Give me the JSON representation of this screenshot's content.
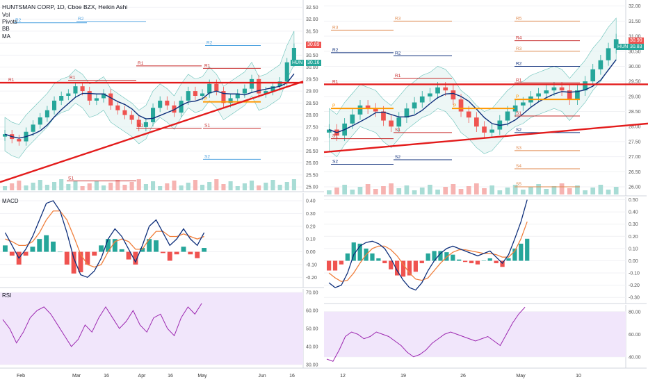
{
  "header": {
    "title": "HUNTSMAN CORP, 1D, Cboe BZX, Heikin Ashi",
    "indicators": [
      "Vol",
      "Pivots",
      "BB",
      "MA"
    ]
  },
  "colors": {
    "up": "#26a69a",
    "down": "#ef5350",
    "trendline": "#e31b1b",
    "ma": "#0d2e7a",
    "macd": "#0d2e7a",
    "signal": "#f07f3c",
    "rsi": "#9c27b0",
    "rsi_band": "#f1e6fb",
    "pivot_p": "#ff9800",
    "pivot_r": "#c62828",
    "pivot_s": "#c62828"
  },
  "symbol_tag": "HUN",
  "chart_data": [
    {
      "name": "left-price",
      "type": "candlestick",
      "xlabels": [
        "Feb",
        "Mar",
        "16",
        "Apr",
        "16",
        "May",
        "Jun",
        "16"
      ],
      "yticks": [
        25.0,
        25.5,
        26.0,
        26.5,
        27.0,
        27.5,
        28.0,
        28.5,
        29.0,
        29.5,
        30.0,
        30.5,
        31.0,
        31.5,
        32.0,
        32.5
      ],
      "ylim": [
        24.8,
        32.8
      ],
      "last_price_label": "30.89",
      "sym_price_label": "30.16",
      "pivot_labels": [
        "R2",
        "R2",
        "R2",
        "R1",
        "R1",
        "R1",
        "R1",
        "P",
        "S1",
        "S1",
        "S2",
        "S1"
      ],
      "close_series": [
        27.2,
        27.0,
        26.9,
        27.3,
        27.6,
        27.9,
        28.2,
        28.6,
        28.8,
        28.9,
        29.2,
        29.0,
        28.6,
        28.7,
        28.9,
        28.4,
        28.2,
        28.0,
        27.8,
        27.5,
        27.7,
        28.3,
        28.6,
        28.4,
        28.1,
        28.6,
        29.0,
        28.8,
        28.9,
        29.3,
        29.0,
        28.5,
        28.7,
        28.9,
        29.1,
        29.5,
        28.9,
        29.0,
        29.2,
        29.4,
        30.2,
        30.8
      ]
    },
    {
      "name": "left-macd",
      "type": "line",
      "label": "MACD",
      "yticks": [
        0.4,
        0.3,
        0.2,
        0.1,
        0.0,
        -0.1,
        -0.2
      ],
      "ylim": [
        -0.28,
        0.46
      ],
      "macd": [
        0.15,
        0.05,
        -0.05,
        0.02,
        0.12,
        0.25,
        0.38,
        0.4,
        0.32,
        0.15,
        -0.05,
        -0.18,
        -0.2,
        -0.15,
        -0.05,
        0.1,
        0.18,
        0.12,
        0.02,
        -0.08,
        0.05,
        0.2,
        0.25,
        0.15,
        0.05,
        0.1,
        0.18,
        0.1,
        0.05,
        0.15
      ],
      "signal": [
        0.1,
        0.08,
        0.05,
        0.05,
        0.08,
        0.15,
        0.25,
        0.32,
        0.32,
        0.25,
        0.12,
        -0.02,
        -0.1,
        -0.12,
        -0.1,
        0.0,
        0.08,
        0.1,
        0.08,
        0.02,
        0.02,
        0.1,
        0.16,
        0.16,
        0.12,
        0.12,
        0.14,
        0.12,
        0.1,
        0.12
      ]
    },
    {
      "name": "left-rsi",
      "type": "line",
      "label": "RSI",
      "yticks": [
        70.0,
        60.0,
        50.0,
        40.0,
        30.0
      ],
      "ylim": [
        28,
        72
      ],
      "values": [
        55,
        50,
        42,
        48,
        56,
        60,
        62,
        58,
        52,
        46,
        40,
        44,
        52,
        48,
        56,
        62,
        56,
        50,
        54,
        60,
        52,
        48,
        56,
        58,
        50,
        46,
        56,
        62,
        58,
        64
      ]
    },
    {
      "name": "right-price",
      "type": "candlestick",
      "xlabels": [
        "12",
        "19",
        "26",
        "May",
        "10"
      ],
      "yticks": [
        26.0,
        26.5,
        27.0,
        27.5,
        28.0,
        28.5,
        29.0,
        29.5,
        30.0,
        30.5,
        31.0,
        31.5,
        32.0
      ],
      "ylim": [
        25.7,
        32.2
      ],
      "last_price_label": "30.90",
      "sym_price_label": "30.83",
      "pivot_labels": [
        "R4",
        "R4",
        "R3",
        "R3",
        "R2",
        "R2",
        "R1",
        "R1",
        "P",
        "P",
        "S1",
        "S1",
        "S2",
        "S2",
        "R5",
        "R4",
        "R3",
        "R2",
        "R1",
        "P",
        "S1",
        "S2",
        "S3",
        "S4",
        "S5"
      ],
      "close_series": [
        27.9,
        27.7,
        28.1,
        28.4,
        28.7,
        28.6,
        28.5,
        28.2,
        28.0,
        28.3,
        28.6,
        28.8,
        29.0,
        29.1,
        29.3,
        29.2,
        28.9,
        28.5,
        28.3,
        28.0,
        27.8,
        27.9,
        28.2,
        28.5,
        28.7,
        28.8,
        29.0,
        29.1,
        29.2,
        29.3,
        29.2,
        28.9,
        29.2,
        29.5,
        29.9,
        30.2,
        30.6,
        30.9
      ]
    },
    {
      "name": "right-macd",
      "type": "line",
      "yticks": [
        0.5,
        0.4,
        0.3,
        0.2,
        0.1,
        0.0,
        -0.1,
        -0.2,
        -0.3
      ],
      "ylim": [
        -0.35,
        0.52
      ],
      "macd": [
        -0.18,
        -0.22,
        -0.2,
        -0.1,
        0.05,
        0.12,
        0.15,
        0.16,
        0.14,
        0.1,
        0.02,
        -0.08,
        -0.16,
        -0.22,
        -0.24,
        -0.18,
        -0.08,
        0.0,
        0.06,
        0.1,
        0.12,
        0.1,
        0.08,
        0.06,
        0.04,
        0.06,
        0.08,
        0.03,
        -0.02,
        0.05,
        0.18,
        0.32,
        0.5
      ],
      "signal": [
        -0.1,
        -0.14,
        -0.17,
        -0.16,
        -0.1,
        -0.02,
        0.05,
        0.1,
        0.12,
        0.12,
        0.09,
        0.04,
        -0.03,
        -0.1,
        -0.15,
        -0.16,
        -0.14,
        -0.08,
        -0.02,
        0.03,
        0.07,
        0.09,
        0.09,
        0.08,
        0.07,
        0.06,
        0.06,
        0.05,
        0.03,
        0.03,
        0.08,
        0.18,
        0.32
      ]
    },
    {
      "name": "right-rsi",
      "type": "line",
      "yticks": [
        80.0,
        60.0,
        40.0
      ],
      "ylim": [
        30,
        86
      ],
      "values": [
        38,
        36,
        46,
        58,
        62,
        60,
        56,
        58,
        62,
        60,
        58,
        54,
        50,
        44,
        40,
        42,
        46,
        52,
        56,
        60,
        62,
        60,
        58,
        56,
        54,
        56,
        58,
        54,
        50,
        60,
        70,
        78,
        84
      ]
    }
  ]
}
